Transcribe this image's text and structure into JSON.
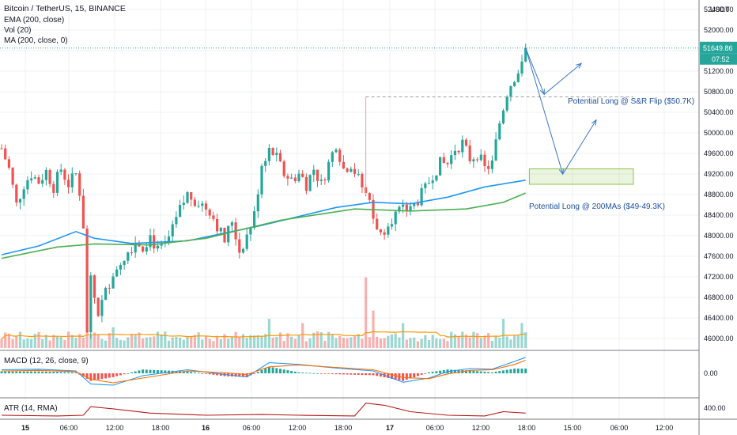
{
  "header": {
    "symbol": "Bitcoin / TetherUS, 15, BINANCE",
    "currency": "USDT",
    "indicators": [
      "EMA (200, close)",
      "Vol (20)",
      "MA (200, close, 0)"
    ],
    "macd_label": "MACD (12, 26, close, 9)",
    "atr_label": "ATR (14, RMA)"
  },
  "price_badge": {
    "value": "51649.86",
    "countdown": "07:52",
    "color": "#26a69a"
  },
  "colors": {
    "up": "#26a69a",
    "down": "#ef5350",
    "ema": "#2196f3",
    "ma": "#4caf50",
    "atr": "#b71c1c",
    "annotation": "#1e4f9c"
  },
  "annotations": {
    "flip": "Potential Long @ S&R Flip ($50.7K)",
    "ma200": "Potential Long @ 200MAs ($49-49.3K)"
  },
  "chart_data": [
    {
      "type": "candlestick",
      "title": "Bitcoin / TetherUS, 15, BINANCE",
      "ylabel": "USDT",
      "ylim": [
        45800,
        52600
      ],
      "y_ticks": [
        "52400.00",
        "52000.00",
        "51600.00",
        "51200.00",
        "50800.00",
        "50400.00",
        "50000.00",
        "49600.00",
        "49200.00",
        "48800.00",
        "48400.00",
        "48000.00",
        "47600.00",
        "47200.00",
        "46800.00",
        "46400.00",
        "46000.00"
      ],
      "x_ticks": [
        "15",
        "06:00",
        "12:00",
        "18:00",
        "16",
        "06:00",
        "12:00",
        "18:00",
        "17",
        "06:00",
        "12:00",
        "18:00",
        "15:00",
        "06:00",
        "12:00"
      ],
      "last_price": 51649.86,
      "price_path": [
        [
          0,
          49700
        ],
        [
          2,
          49300
        ],
        [
          4,
          48600
        ],
        [
          6,
          49000
        ],
        [
          8,
          49200
        ],
        [
          10,
          49050
        ],
        [
          12,
          49250
        ],
        [
          14,
          48950
        ],
        [
          16,
          49300
        ],
        [
          18,
          49000
        ],
        [
          20,
          49200
        ],
        [
          21,
          48850
        ],
        [
          22,
          48200
        ],
        [
          23,
          46100
        ],
        [
          24,
          47100
        ],
        [
          26,
          46500
        ],
        [
          28,
          46900
        ],
        [
          30,
          47300
        ],
        [
          32,
          47500
        ],
        [
          34,
          47700
        ],
        [
          36,
          47900
        ],
        [
          38,
          47800
        ],
        [
          40,
          48000
        ],
        [
          42,
          47700
        ],
        [
          44,
          47800
        ],
        [
          46,
          48100
        ],
        [
          48,
          48500
        ],
        [
          50,
          48800
        ],
        [
          52,
          48700
        ],
        [
          54,
          48600
        ],
        [
          56,
          48500
        ],
        [
          58,
          48200
        ],
        [
          60,
          47900
        ],
        [
          62,
          48300
        ],
        [
          64,
          47700
        ],
        [
          66,
          48000
        ],
        [
          68,
          48400
        ],
        [
          70,
          49400
        ],
        [
          72,
          49700
        ],
        [
          74,
          49500
        ],
        [
          76,
          49200
        ],
        [
          78,
          49100
        ],
        [
          80,
          49200
        ],
        [
          82,
          49000
        ],
        [
          84,
          49300
        ],
        [
          86,
          49000
        ],
        [
          88,
          49400
        ],
        [
          90,
          49800
        ],
        [
          92,
          49300
        ],
        [
          94,
          49400
        ],
        [
          96,
          49100
        ],
        [
          98,
          48800
        ],
        [
          100,
          48400
        ],
        [
          102,
          48000
        ],
        [
          104,
          48300
        ],
        [
          106,
          48400
        ],
        [
          108,
          48500
        ],
        [
          110,
          48500
        ],
        [
          112,
          48700
        ],
        [
          114,
          48900
        ],
        [
          116,
          49200
        ],
        [
          118,
          49400
        ],
        [
          120,
          49400
        ],
        [
          122,
          49700
        ],
        [
          124,
          49800
        ],
        [
          126,
          49500
        ],
        [
          128,
          49600
        ],
        [
          130,
          49300
        ],
        [
          132,
          49400
        ],
        [
          134,
          50200
        ],
        [
          136,
          50800
        ],
        [
          138,
          51100
        ],
        [
          140,
          51300
        ],
        [
          141,
          51649.86
        ]
      ],
      "series": [
        {
          "name": "EMA (200, close)",
          "values": [
            [
              0,
              47630
            ],
            [
              10,
              47800
            ],
            [
              20,
              48080
            ],
            [
              25,
              47950
            ],
            [
              35,
              47850
            ],
            [
              50,
              47900
            ],
            [
              70,
              48200
            ],
            [
              90,
              48550
            ],
            [
              100,
              48650
            ],
            [
              110,
              48620
            ],
            [
              120,
              48750
            ],
            [
              130,
              48950
            ],
            [
              141,
              49080
            ]
          ]
        },
        {
          "name": "MA (200, close, 0)",
          "values": [
            [
              0,
              47560
            ],
            [
              15,
              47780
            ],
            [
              25,
              47840
            ],
            [
              40,
              47820
            ],
            [
              55,
              47950
            ],
            [
              75,
              48300
            ],
            [
              95,
              48520
            ],
            [
              110,
              48480
            ],
            [
              125,
              48520
            ],
            [
              135,
              48650
            ],
            [
              141,
              48830
            ]
          ]
        }
      ],
      "levels": [
        {
          "value": 50700,
          "style": "dashed",
          "from_bar": 98,
          "to_bar": 170
        }
      ],
      "zones": [
        {
          "low": 49000,
          "high": 49300,
          "from_bar": 142,
          "to_bar": 170
        }
      ],
      "projections": [
        {
          "points": [
            [
              141,
              51649.86
            ],
            [
              146,
              50750
            ],
            [
              156,
              51350
            ]
          ]
        },
        {
          "points": [
            [
              141,
              51649.86
            ],
            [
              151,
              49200
            ],
            [
              160,
              50250
            ]
          ]
        }
      ]
    },
    {
      "type": "bar",
      "title": "Vol (20)",
      "spikes": [
        [
          23,
          0.5
        ],
        [
          30,
          0.25
        ],
        [
          72,
          0.35
        ],
        [
          81,
          0.3
        ],
        [
          98,
          0.85
        ],
        [
          100,
          0.45
        ],
        [
          108,
          0.3
        ],
        [
          135,
          0.35
        ],
        [
          140,
          0.3
        ]
      ]
    },
    {
      "type": "line",
      "title": "MACD (12, 26, close, 9)",
      "y_ticks": [
        "0.00"
      ],
      "series": [
        {
          "name": "MACD",
          "values": [
            [
              0,
              60
            ],
            [
              10,
              70
            ],
            [
              20,
              40
            ],
            [
              24,
              -180
            ],
            [
              30,
              -200
            ],
            [
              38,
              -40
            ],
            [
              50,
              60
            ],
            [
              60,
              -20
            ],
            [
              66,
              -60
            ],
            [
              72,
              180
            ],
            [
              80,
              150
            ],
            [
              90,
              90
            ],
            [
              100,
              40
            ],
            [
              108,
              -150
            ],
            [
              115,
              -80
            ],
            [
              120,
              30
            ],
            [
              126,
              80
            ],
            [
              132,
              70
            ],
            [
              138,
              200
            ],
            [
              141,
              270
            ]
          ]
        },
        {
          "name": "Signal",
          "values": [
            [
              0,
              40
            ],
            [
              10,
              50
            ],
            [
              20,
              30
            ],
            [
              24,
              -100
            ],
            [
              30,
              -160
            ],
            [
              38,
              -80
            ],
            [
              50,
              40
            ],
            [
              60,
              10
            ],
            [
              66,
              -20
            ],
            [
              72,
              110
            ],
            [
              80,
              140
            ],
            [
              90,
              100
            ],
            [
              100,
              60
            ],
            [
              108,
              -70
            ],
            [
              115,
              -90
            ],
            [
              120,
              -10
            ],
            [
              126,
              50
            ],
            [
              132,
              60
            ],
            [
              138,
              150
            ],
            [
              141,
              220
            ]
          ]
        }
      ]
    },
    {
      "type": "line",
      "title": "ATR (14, RMA)",
      "y_ticks": [
        "400.00"
      ],
      "series": [
        {
          "name": "ATR",
          "values": [
            [
              0,
              300
            ],
            [
              15,
              290
            ],
            [
              22,
              300
            ],
            [
              24,
              420
            ],
            [
              30,
              390
            ],
            [
              40,
              330
            ],
            [
              55,
              300
            ],
            [
              70,
              310
            ],
            [
              80,
              300
            ],
            [
              95,
              290
            ],
            [
              98,
              470
            ],
            [
              103,
              440
            ],
            [
              110,
              350
            ],
            [
              120,
              300
            ],
            [
              130,
              290
            ],
            [
              135,
              350
            ],
            [
              141,
              330
            ]
          ]
        }
      ]
    }
  ]
}
